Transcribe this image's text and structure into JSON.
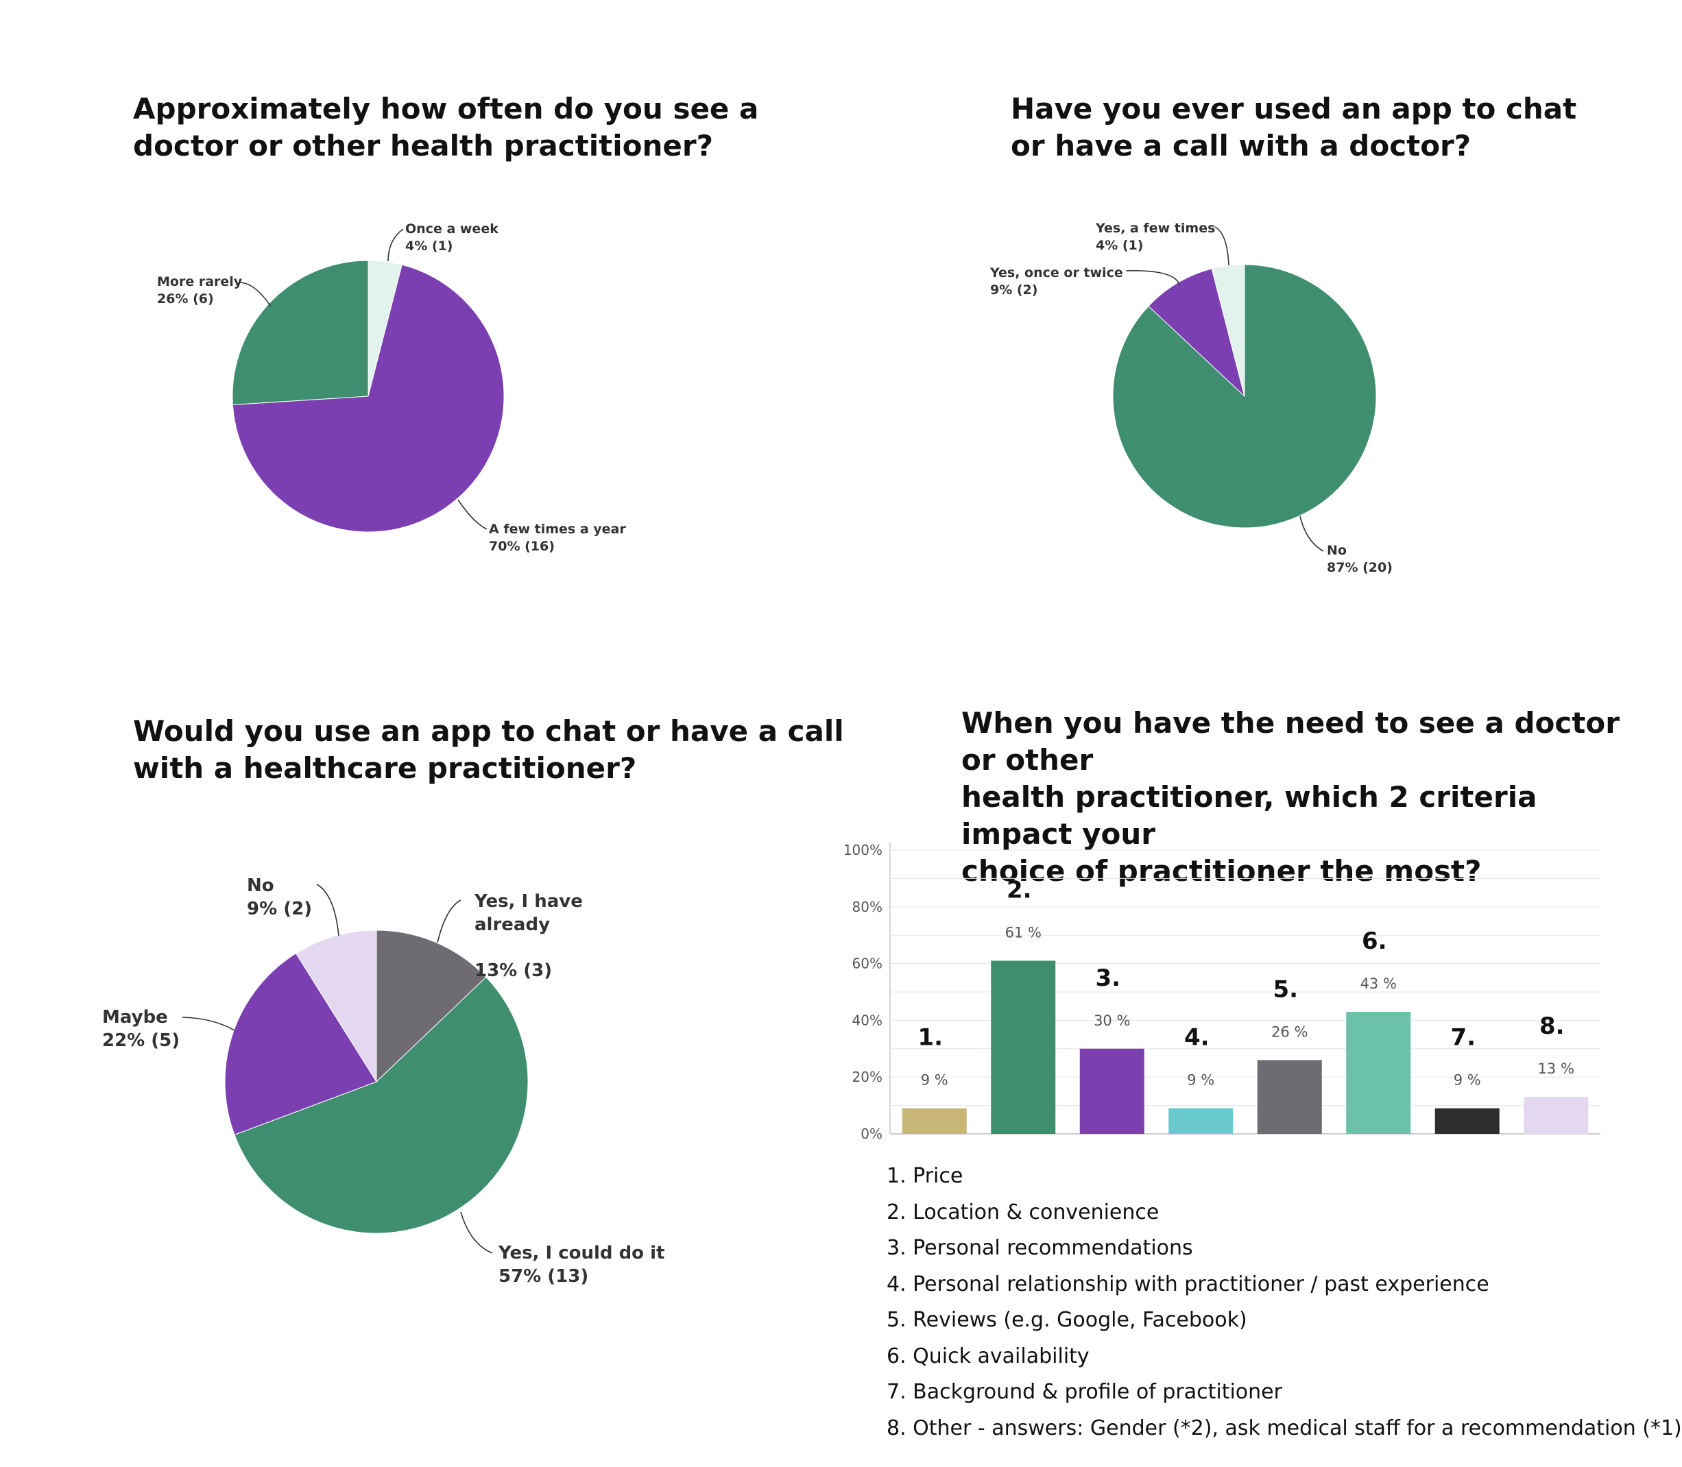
{
  "chart_data": [
    {
      "type": "pie",
      "title": "Approximately how often do you see a\ndoctor or other health practitioner?",
      "slices": [
        {
          "label": "Once a week",
          "value_label": "4% (1)",
          "percent": 4,
          "count": 1,
          "color": "#e2f3ee"
        },
        {
          "label": "A few times a year",
          "value_label": "70% (16)",
          "percent": 70,
          "count": 16,
          "color": "#7b3fb1"
        },
        {
          "label": "More rarely",
          "value_label": "26% (6)",
          "percent": 26,
          "count": 6,
          "color": "#3f8e70"
        }
      ]
    },
    {
      "type": "pie",
      "title": "Have you ever used an app to chat\nor have a call with a doctor?",
      "slices": [
        {
          "label": "No",
          "value_label": "87% (20)",
          "percent": 87,
          "count": 20,
          "color": "#3f8e70"
        },
        {
          "label": "Yes, once or twice",
          "value_label": "9% (2)",
          "percent": 9,
          "count": 2,
          "color": "#7b3fb1"
        },
        {
          "label": "Yes, a few times",
          "value_label": "4% (1)",
          "percent": 4,
          "count": 1,
          "color": "#e2f3ee"
        }
      ]
    },
    {
      "type": "pie",
      "title": "Would you use an app to chat or have a call\nwith a healthcare practitioner?",
      "slices": [
        {
          "label": "Yes, I have already",
          "value_label": "13% (3)",
          "percent": 13,
          "count": 3,
          "color": "#6e6b73"
        },
        {
          "label": "Yes, I could do it",
          "value_label": "57% (13)",
          "percent": 57,
          "count": 13,
          "color": "#3f8e70"
        },
        {
          "label": "Maybe",
          "value_label": "22% (5)",
          "percent": 22,
          "count": 5,
          "color": "#7b3fb1"
        },
        {
          "label": "No",
          "value_label": "9% (2)",
          "percent": 9,
          "count": 2,
          "color": "#e4d8f0"
        }
      ]
    },
    {
      "type": "bar",
      "title": "When you have the need to see a doctor or other\nhealth practitioner, which 2 criteria impact your\nchoice of practitioner the most?",
      "categories": [
        "1.",
        "2.",
        "3.",
        "4.",
        "5.",
        "6.",
        "7.",
        "8."
      ],
      "values": [
        9,
        61,
        30,
        9,
        26,
        43,
        9,
        13
      ],
      "value_labels": [
        "9 %",
        "61 %",
        "30 %",
        "9 %",
        "26 %",
        "43 %",
        "9 %",
        "13 %"
      ],
      "colors": [
        "#c8b677",
        "#3f8e70",
        "#7b3fb1",
        "#68c9cf",
        "#6e6b73",
        "#6bc2a8",
        "#2e2e2e",
        "#e4d8f0"
      ],
      "yticks": [
        "100%",
        "80%",
        "60%",
        "40%",
        "20%",
        "0%"
      ],
      "ylim": [
        0,
        100
      ],
      "grid": true,
      "legend_items": [
        "1. Price",
        "2. Location & convenience",
        "3. Personal recommendations",
        "4. Personal relationship with practitioner / past experience",
        "5. Reviews (e.g. Google, Facebook)",
        "6. Quick availability",
        "7. Background & profile of practitioner",
        "8. Other - answers: Gender (*2), ask medical staff for a recommendation (*1)"
      ]
    }
  ]
}
